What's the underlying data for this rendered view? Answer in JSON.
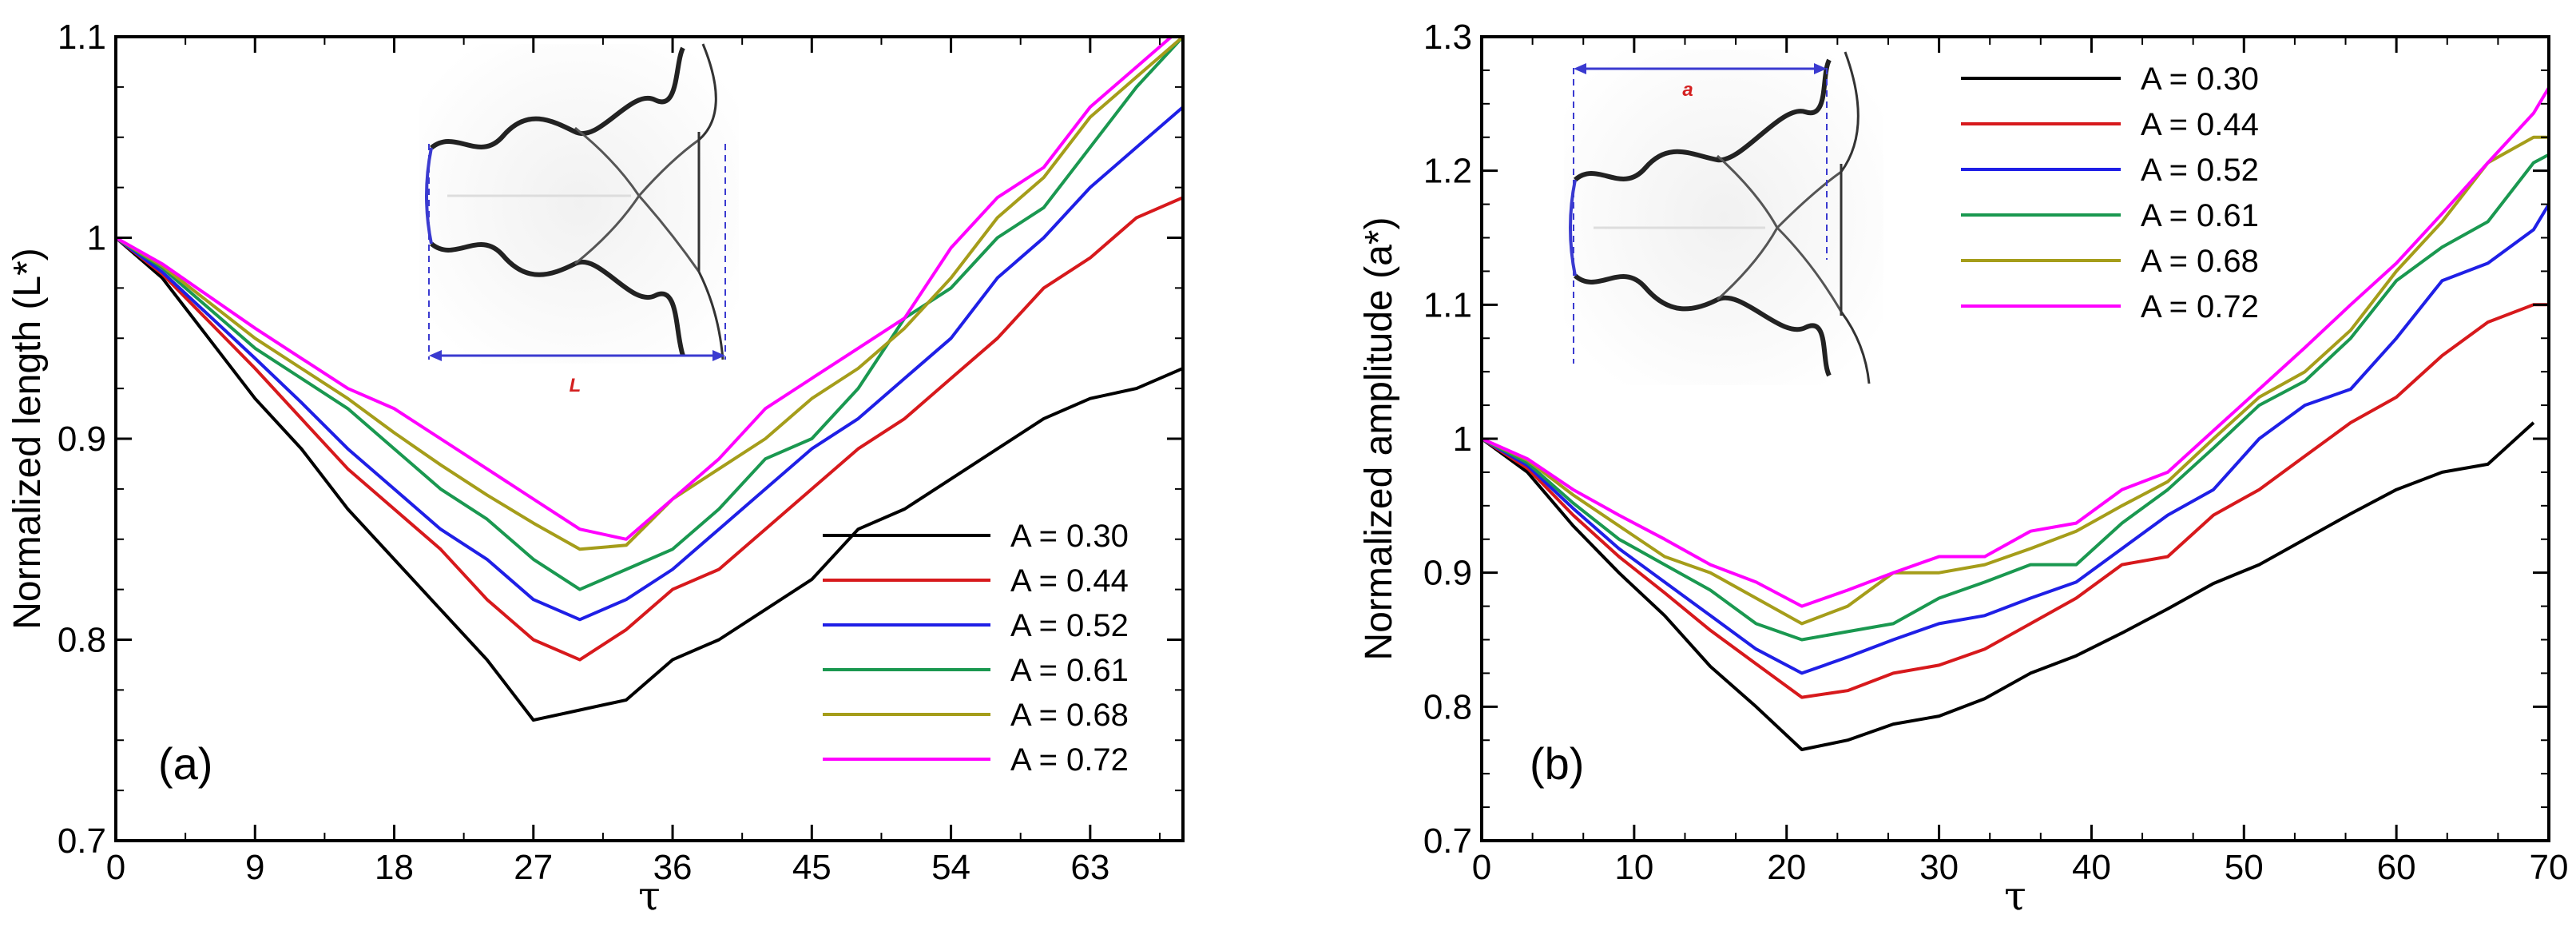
{
  "figure": {
    "panels": [
      "(a)",
      "(b)"
    ]
  },
  "chart_data": [
    {
      "type": "line",
      "panel_label": "(a)",
      "title": "",
      "xlabel": "τ",
      "ylabel": "Normalized length (L*)",
      "xlim": [
        0,
        69
      ],
      "ylim": [
        0.7,
        1.1
      ],
      "xticks": [
        "0",
        "9",
        "18",
        "27",
        "36",
        "45",
        "54",
        "63"
      ],
      "yticks": [
        "0.7",
        "0.8",
        "0.9",
        "1",
        "1.1"
      ],
      "legend_position": "bottom-right",
      "inset_label": "L",
      "series": [
        {
          "name": "A = 0.30",
          "color": "#000000",
          "x": [
            0,
            3,
            9,
            12,
            15,
            18,
            21,
            24,
            27,
            30,
            33,
            36,
            39,
            42,
            45,
            48,
            51,
            54,
            57,
            60,
            63,
            66,
            69
          ],
          "y": [
            1.0,
            0.98,
            0.92,
            0.895,
            0.865,
            0.84,
            0.815,
            0.79,
            0.76,
            0.765,
            0.77,
            0.79,
            0.8,
            0.815,
            0.83,
            0.855,
            0.865,
            0.88,
            0.895,
            0.91,
            0.92,
            0.925,
            0.935
          ]
        },
        {
          "name": "A = 0.44",
          "color": "#d7191c",
          "x": [
            0,
            3,
            9,
            12,
            15,
            18,
            21,
            24,
            27,
            30,
            33,
            36,
            39,
            42,
            45,
            48,
            51,
            54,
            57,
            60,
            63,
            66,
            69,
            70
          ],
          "y": [
            1.0,
            0.982,
            0.935,
            0.91,
            0.885,
            0.865,
            0.845,
            0.82,
            0.8,
            0.79,
            0.805,
            0.825,
            0.835,
            0.855,
            0.875,
            0.895,
            0.91,
            0.93,
            0.95,
            0.975,
            0.99,
            1.01,
            1.02,
            1.02
          ]
        },
        {
          "name": "A = 0.52",
          "color": "#1f1fe6",
          "x": [
            0,
            3,
            9,
            12,
            15,
            18,
            21,
            24,
            27,
            30,
            33,
            36,
            39,
            42,
            45,
            48,
            51,
            54,
            57,
            60,
            63,
            66,
            69,
            70
          ],
          "y": [
            1.0,
            0.983,
            0.94,
            0.918,
            0.895,
            0.875,
            0.855,
            0.84,
            0.82,
            0.81,
            0.82,
            0.835,
            0.855,
            0.875,
            0.895,
            0.91,
            0.93,
            0.95,
            0.98,
            1.0,
            1.025,
            1.045,
            1.065,
            1.08
          ]
        },
        {
          "name": "A = 0.61",
          "color": "#1a9850",
          "x": [
            0,
            3,
            9,
            12,
            15,
            18,
            21,
            24,
            27,
            30,
            33,
            36,
            39,
            42,
            45,
            48,
            51,
            54,
            57,
            60,
            63,
            66,
            69
          ],
          "y": [
            1.0,
            0.985,
            0.945,
            0.93,
            0.915,
            0.895,
            0.875,
            0.86,
            0.84,
            0.825,
            0.835,
            0.845,
            0.865,
            0.89,
            0.9,
            0.925,
            0.96,
            0.975,
            1.0,
            1.015,
            1.045,
            1.075,
            1.1
          ]
        },
        {
          "name": "A = 0.68",
          "color": "#a59d1a",
          "x": [
            0,
            3,
            9,
            12,
            15,
            18,
            21,
            24,
            27,
            30,
            33,
            36,
            39,
            42,
            45,
            48,
            51,
            54,
            57,
            60,
            63,
            66,
            69
          ],
          "y": [
            1.0,
            0.986,
            0.95,
            0.935,
            0.92,
            0.903,
            0.887,
            0.872,
            0.858,
            0.845,
            0.847,
            0.87,
            0.885,
            0.9,
            0.92,
            0.935,
            0.955,
            0.98,
            1.01,
            1.03,
            1.06,
            1.08,
            1.1
          ]
        },
        {
          "name": "A = 0.72",
          "color": "#ff00ff",
          "x": [
            0,
            3,
            9,
            12,
            15,
            18,
            21,
            24,
            27,
            30,
            33,
            36,
            39,
            42,
            45,
            48,
            51,
            54,
            57,
            60,
            63,
            66,
            69
          ],
          "y": [
            1.0,
            0.987,
            0.955,
            0.94,
            0.925,
            0.915,
            0.9,
            0.885,
            0.87,
            0.855,
            0.85,
            0.87,
            0.89,
            0.915,
            0.93,
            0.945,
            0.96,
            0.995,
            1.02,
            1.035,
            1.065,
            1.085,
            1.105
          ]
        }
      ]
    },
    {
      "type": "line",
      "panel_label": "(b)",
      "title": "",
      "xlabel": "τ",
      "ylabel": "Normalized amplitude (a*)",
      "xlim": [
        0,
        70
      ],
      "ylim": [
        0.7,
        1.3
      ],
      "xticks": [
        "0",
        "10",
        "20",
        "30",
        "40",
        "50",
        "60",
        "70"
      ],
      "yticks": [
        "0.7",
        "0.8",
        "0.9",
        "1",
        "1.1",
        "1.2",
        "1.3"
      ],
      "legend_position": "top-center",
      "inset_label": "a",
      "series": [
        {
          "name": "A = 0.30",
          "color": "#000000",
          "x": [
            0,
            3,
            6,
            9,
            12,
            15,
            18,
            21,
            24,
            27,
            30,
            33,
            36,
            39,
            42,
            45,
            48,
            51,
            54,
            57,
            60,
            63,
            66,
            69
          ],
          "y": [
            1.0,
            0.975,
            0.935,
            0.9,
            0.868,
            0.83,
            0.8,
            0.768,
            0.775,
            0.787,
            0.793,
            0.806,
            0.825,
            0.838,
            0.855,
            0.873,
            0.892,
            0.906,
            0.925,
            0.944,
            0.962,
            0.975,
            0.981,
            1.012
          ]
        },
        {
          "name": "A = 0.44",
          "color": "#d7191c",
          "x": [
            0,
            3,
            6,
            9,
            12,
            15,
            18,
            21,
            24,
            27,
            30,
            33,
            36,
            39,
            42,
            45,
            48,
            51,
            54,
            57,
            60,
            63,
            66,
            69,
            70
          ],
          "y": [
            1.0,
            0.978,
            0.943,
            0.912,
            0.885,
            0.857,
            0.832,
            0.807,
            0.812,
            0.825,
            0.831,
            0.843,
            0.862,
            0.881,
            0.906,
            0.912,
            0.943,
            0.962,
            0.987,
            1.012,
            1.031,
            1.062,
            1.087,
            1.1,
            1.1
          ]
        },
        {
          "name": "A = 0.52",
          "color": "#1f1fe6",
          "x": [
            0,
            3,
            6,
            9,
            12,
            15,
            18,
            21,
            24,
            27,
            30,
            33,
            36,
            39,
            42,
            45,
            48,
            51,
            54,
            57,
            60,
            63,
            66,
            69,
            70
          ],
          "y": [
            1.0,
            0.98,
            0.948,
            0.918,
            0.893,
            0.868,
            0.843,
            0.825,
            0.837,
            0.85,
            0.862,
            0.868,
            0.881,
            0.893,
            0.918,
            0.943,
            0.962,
            1.0,
            1.025,
            1.037,
            1.075,
            1.118,
            1.131,
            1.156,
            1.175
          ]
        },
        {
          "name": "A = 0.61",
          "color": "#1a9850",
          "x": [
            0,
            3,
            6,
            9,
            12,
            15,
            18,
            21,
            24,
            27,
            30,
            33,
            36,
            39,
            42,
            45,
            48,
            51,
            54,
            57,
            60,
            63,
            66,
            69,
            70
          ],
          "y": [
            1.0,
            0.982,
            0.952,
            0.925,
            0.906,
            0.887,
            0.862,
            0.85,
            0.856,
            0.862,
            0.881,
            0.893,
            0.906,
            0.906,
            0.937,
            0.962,
            0.993,
            1.025,
            1.043,
            1.075,
            1.118,
            1.143,
            1.162,
            1.206,
            1.212
          ]
        },
        {
          "name": "A = 0.68",
          "color": "#a59d1a",
          "x": [
            0,
            3,
            6,
            9,
            12,
            15,
            18,
            21,
            24,
            27,
            30,
            33,
            36,
            39,
            42,
            45,
            48,
            51,
            54,
            57,
            60,
            63,
            66,
            69,
            70
          ],
          "y": [
            1.0,
            0.984,
            0.958,
            0.935,
            0.912,
            0.9,
            0.881,
            0.862,
            0.875,
            0.9,
            0.9,
            0.906,
            0.918,
            0.931,
            0.95,
            0.968,
            1.0,
            1.031,
            1.05,
            1.081,
            1.125,
            1.162,
            1.206,
            1.225,
            1.225
          ]
        },
        {
          "name": "A = 0.72",
          "color": "#ff00ff",
          "x": [
            0,
            3,
            6,
            9,
            12,
            15,
            18,
            21,
            24,
            27,
            30,
            33,
            36,
            39,
            42,
            45,
            48,
            51,
            54,
            57,
            60,
            63,
            66,
            69,
            70
          ],
          "y": [
            1.0,
            0.985,
            0.962,
            0.943,
            0.925,
            0.906,
            0.893,
            0.875,
            0.887,
            0.9,
            0.912,
            0.912,
            0.931,
            0.937,
            0.962,
            0.975,
            1.006,
            1.037,
            1.068,
            1.1,
            1.131,
            1.168,
            1.206,
            1.243,
            1.262
          ]
        }
      ]
    }
  ]
}
